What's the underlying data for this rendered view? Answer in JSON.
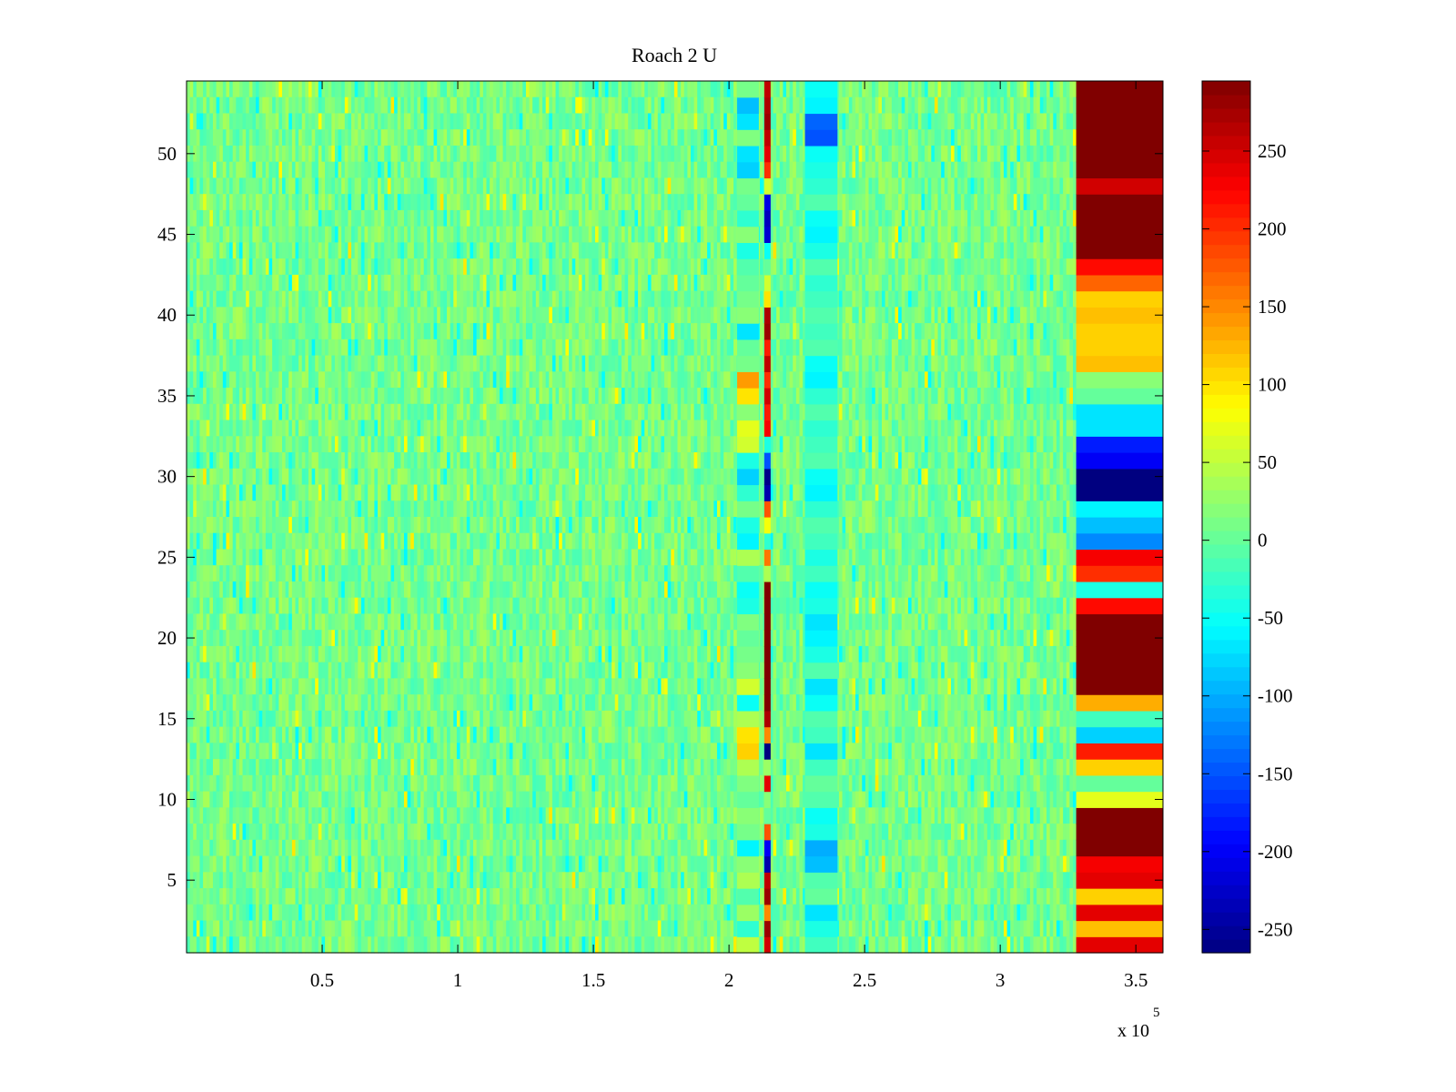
{
  "chart_data": {
    "type": "heatmap",
    "title": "Roach 2 U",
    "xlabel": "",
    "ylabel": "",
    "x_exponent_label": "x 10",
    "x_exponent_power": "5",
    "xlim": [
      0,
      3.6
    ],
    "ylim": [
      0.5,
      54.5
    ],
    "x_ticks": [
      0.5,
      1,
      1.5,
      2,
      2.5,
      3,
      3.5
    ],
    "x_tick_labels": [
      "0.5",
      "1",
      "1.5",
      "2",
      "2.5",
      "3",
      "3.5"
    ],
    "y_ticks": [
      5,
      10,
      15,
      20,
      25,
      30,
      35,
      40,
      45,
      50
    ],
    "y_tick_labels": [
      "5",
      "10",
      "15",
      "20",
      "25",
      "30",
      "35",
      "40",
      "45",
      "50"
    ],
    "rows": 54,
    "colormap": "jet",
    "background_range": [
      -20,
      40
    ],
    "colorbar": {
      "clim": [
        -265,
        295
      ],
      "ticks": [
        -250,
        -200,
        -150,
        -100,
        -50,
        0,
        50,
        100,
        150,
        200,
        250
      ],
      "tick_labels": [
        "-250",
        "-200",
        "-150",
        "-100",
        "-50",
        "0",
        "50",
        "100",
        "150",
        "200",
        "250"
      ]
    },
    "end_block": {
      "x_range": [
        3.28,
        3.6
      ],
      "row_values": [
        240,
        120,
        240,
        110,
        240,
        230,
        295,
        295,
        295,
        70,
        0,
        110,
        210,
        -80,
        -20,
        130,
        295,
        295,
        295,
        295,
        295,
        220,
        -40,
        200,
        230,
        -120,
        -90,
        -60,
        -270,
        -270,
        -200,
        -180,
        -70,
        -70,
        0,
        20,
        120,
        110,
        110,
        120,
        110,
        170,
        220,
        295,
        295,
        295,
        295,
        250,
        295,
        295,
        295,
        295,
        295,
        295
      ]
    },
    "spike_column": {
      "x": 2.14,
      "row_values": [
        250,
        280,
        150,
        280,
        260,
        -240,
        -200,
        180,
        0,
        20,
        240,
        30,
        -280,
        150,
        270,
        295,
        295,
        295,
        295,
        295,
        295,
        295,
        295,
        40,
        160,
        -30,
        80,
        180,
        -240,
        -260,
        -150,
        -40,
        230,
        210,
        250,
        200,
        260,
        210,
        280,
        270,
        100,
        60,
        0,
        -50,
        -220,
        -230,
        -210,
        60,
        200,
        240,
        260,
        280,
        270,
        260
      ]
    },
    "vertical_bands": [
      {
        "x_range": [
          2.03,
          2.11
        ],
        "row_values": [
          50,
          -30,
          30,
          -10,
          40,
          20,
          -60,
          10,
          20,
          0,
          15,
          40,
          110,
          100,
          40,
          -50,
          60,
          20,
          10,
          0,
          15,
          -40,
          -50,
          -10,
          40,
          -60,
          -40,
          10,
          -30,
          -80,
          -40,
          60,
          70,
          20,
          100,
          140,
          10,
          0,
          -70,
          20,
          10,
          0,
          -10,
          -40,
          20,
          -30,
          0,
          10,
          -80,
          -70,
          15,
          -70,
          -90,
          10
        ]
      },
      {
        "x_range": [
          2.28,
          2.4
        ],
        "row_values": [
          -20,
          -40,
          -70,
          0,
          -10,
          -90,
          -100,
          -40,
          -50,
          -10,
          0,
          -20,
          -70,
          -20,
          -10,
          -50,
          -70,
          -10,
          -40,
          -60,
          -70,
          -40,
          -50,
          -20,
          -40,
          -20,
          -10,
          -30,
          -60,
          -50,
          -10,
          -20,
          -30,
          -10,
          -30,
          -60,
          -50,
          -10,
          -20,
          -10,
          -20,
          -30,
          -10,
          -40,
          -60,
          -50,
          -10,
          -30,
          -40,
          -50,
          -150,
          -140,
          -60,
          -50
        ]
      }
    ],
    "x_tick_labels_note": "axis values in units of 1e5"
  }
}
